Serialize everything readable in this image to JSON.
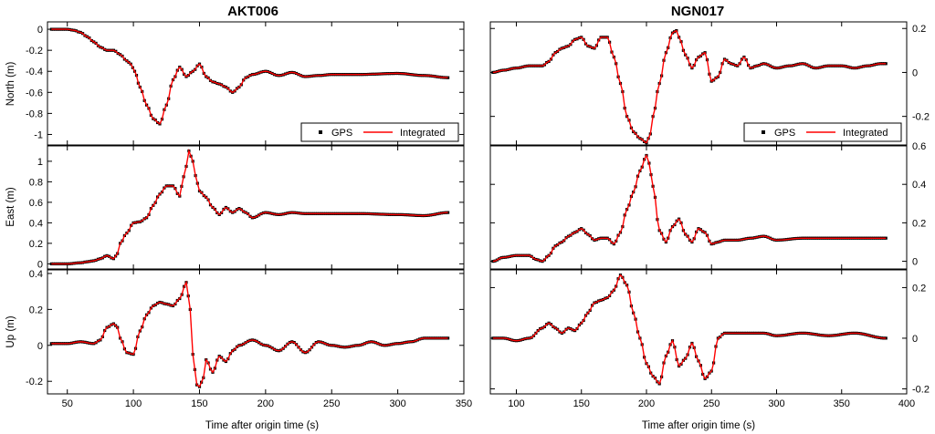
{
  "colors": {
    "gps": "#000000",
    "integrated": "#ff0000",
    "frame": "#000000"
  },
  "columns": [
    {
      "title": "AKT006",
      "xlim": [
        35,
        350
      ],
      "xticks": [
        50,
        100,
        150,
        200,
        250,
        300,
        350
      ],
      "xlabel": "Time after origin time (s)",
      "yaxis_side": "left"
    },
    {
      "title": "NGN017",
      "xlim": [
        80,
        400
      ],
      "xticks": [
        100,
        150,
        200,
        250,
        300,
        350,
        400
      ],
      "xlabel": "Time after origin time (s)",
      "yaxis_side": "right"
    }
  ],
  "legend": {
    "gps_label": "GPS",
    "integrated_label": "Integrated",
    "placement": "bottom-right"
  },
  "chart_data": [
    {
      "type": "line",
      "station": "AKT006",
      "component": "North",
      "ylabel": "North (m)",
      "ylim": [
        -1.1,
        0.07
      ],
      "yticks": [
        0.0,
        -0.2,
        -0.4,
        -0.6,
        -0.8,
        -1.0
      ],
      "series": [
        {
          "name": "GPS",
          "marker": "square"
        },
        {
          "name": "Integrated",
          "line": "solid"
        }
      ],
      "x": [
        38,
        50,
        55,
        60,
        65,
        70,
        75,
        80,
        85,
        90,
        95,
        98,
        101,
        105,
        110,
        115,
        120,
        125,
        130,
        135,
        140,
        145,
        150,
        155,
        160,
        165,
        170,
        175,
        180,
        185,
        190,
        200,
        210,
        220,
        230,
        240,
        250,
        270,
        300,
        320,
        338
      ],
      "y": [
        0.0,
        0.0,
        -0.01,
        -0.03,
        -0.07,
        -0.12,
        -0.17,
        -0.2,
        -0.2,
        -0.24,
        -0.3,
        -0.33,
        -0.4,
        -0.55,
        -0.72,
        -0.85,
        -0.9,
        -0.72,
        -0.48,
        -0.36,
        -0.45,
        -0.4,
        -0.33,
        -0.45,
        -0.5,
        -0.52,
        -0.55,
        -0.6,
        -0.55,
        -0.46,
        -0.43,
        -0.4,
        -0.44,
        -0.41,
        -0.45,
        -0.44,
        -0.43,
        -0.43,
        -0.42,
        -0.44,
        -0.46
      ]
    },
    {
      "type": "line",
      "station": "NGN017",
      "component": "North",
      "ylabel": "",
      "ylim": [
        -0.33,
        0.23
      ],
      "yticks": [
        0.2,
        0.0,
        -0.2
      ],
      "series": [
        {
          "name": "GPS",
          "marker": "square"
        },
        {
          "name": "Integrated",
          "line": "solid"
        }
      ],
      "x": [
        82,
        90,
        100,
        110,
        120,
        125,
        130,
        135,
        140,
        145,
        150,
        155,
        160,
        165,
        170,
        175,
        180,
        185,
        190,
        195,
        200,
        203,
        205,
        210,
        215,
        220,
        223,
        225,
        230,
        235,
        240,
        245,
        250,
        255,
        260,
        265,
        270,
        275,
        280,
        285,
        290,
        300,
        310,
        320,
        330,
        340,
        350,
        360,
        370,
        380,
        384
      ],
      "y": [
        0.0,
        0.01,
        0.02,
        0.03,
        0.03,
        0.05,
        0.09,
        0.11,
        0.12,
        0.15,
        0.16,
        0.12,
        0.11,
        0.16,
        0.16,
        0.07,
        -0.05,
        -0.2,
        -0.27,
        -0.3,
        -0.32,
        -0.28,
        -0.2,
        -0.05,
        0.09,
        0.18,
        0.19,
        0.16,
        0.08,
        0.02,
        0.07,
        0.09,
        -0.04,
        -0.02,
        0.06,
        0.04,
        0.03,
        0.07,
        0.02,
        0.03,
        0.04,
        0.02,
        0.03,
        0.04,
        0.02,
        0.03,
        0.03,
        0.02,
        0.03,
        0.04,
        0.04
      ]
    },
    {
      "type": "line",
      "station": "AKT006",
      "component": "East",
      "ylabel": "East (m)",
      "ylim": [
        -0.05,
        1.15
      ],
      "yticks": [
        0.0,
        0.2,
        0.4,
        0.6,
        0.8,
        1.0
      ],
      "series": [
        {
          "name": "GPS",
          "marker": "square"
        },
        {
          "name": "Integrated",
          "line": "solid"
        }
      ],
      "x": [
        38,
        50,
        60,
        65,
        70,
        75,
        80,
        85,
        88,
        90,
        95,
        100,
        105,
        110,
        115,
        120,
        125,
        130,
        135,
        138,
        140,
        142,
        145,
        147,
        150,
        155,
        160,
        165,
        170,
        175,
        180,
        185,
        190,
        200,
        210,
        220,
        230,
        250,
        270,
        300,
        320,
        338
      ],
      "y": [
        0.0,
        0.0,
        0.01,
        0.02,
        0.03,
        0.05,
        0.08,
        0.05,
        0.1,
        0.2,
        0.3,
        0.4,
        0.41,
        0.45,
        0.57,
        0.68,
        0.76,
        0.76,
        0.66,
        0.85,
        0.95,
        1.1,
        1.0,
        0.86,
        0.71,
        0.65,
        0.55,
        0.48,
        0.55,
        0.5,
        0.54,
        0.5,
        0.45,
        0.5,
        0.48,
        0.5,
        0.49,
        0.49,
        0.49,
        0.48,
        0.47,
        0.5
      ]
    },
    {
      "type": "line",
      "station": "NGN017",
      "component": "East",
      "ylabel": "",
      "ylim": [
        -0.04,
        0.6
      ],
      "yticks": [
        0.0,
        0.2,
        0.4,
        0.6
      ],
      "series": [
        {
          "name": "GPS",
          "marker": "square"
        },
        {
          "name": "Integrated",
          "line": "solid"
        }
      ],
      "x": [
        82,
        90,
        100,
        110,
        115,
        120,
        125,
        130,
        135,
        140,
        145,
        150,
        155,
        160,
        165,
        170,
        175,
        180,
        185,
        190,
        195,
        200,
        202,
        205,
        210,
        215,
        220,
        225,
        230,
        235,
        240,
        245,
        250,
        255,
        260,
        270,
        280,
        290,
        300,
        320,
        340,
        360,
        384
      ],
      "y": [
        0.0,
        0.02,
        0.03,
        0.03,
        0.01,
        0.0,
        0.03,
        0.08,
        0.1,
        0.13,
        0.15,
        0.17,
        0.14,
        0.11,
        0.12,
        0.12,
        0.09,
        0.15,
        0.27,
        0.36,
        0.47,
        0.55,
        0.51,
        0.39,
        0.16,
        0.1,
        0.18,
        0.22,
        0.14,
        0.1,
        0.17,
        0.15,
        0.09,
        0.1,
        0.11,
        0.11,
        0.12,
        0.13,
        0.11,
        0.12,
        0.12,
        0.12,
        0.12
      ]
    },
    {
      "type": "line",
      "station": "AKT006",
      "component": "Up",
      "ylabel": "Up (m)",
      "ylim": [
        -0.27,
        0.42
      ],
      "yticks": [
        0.4,
        0.2,
        0.0,
        -0.2
      ],
      "series": [
        {
          "name": "GPS",
          "marker": "square"
        },
        {
          "name": "Integrated",
          "line": "solid"
        }
      ],
      "x": [
        38,
        50,
        60,
        70,
        75,
        80,
        85,
        88,
        90,
        95,
        100,
        105,
        110,
        115,
        120,
        125,
        130,
        135,
        140,
        143,
        145,
        148,
        150,
        153,
        155,
        160,
        165,
        170,
        175,
        180,
        190,
        200,
        210,
        220,
        230,
        240,
        250,
        260,
        270,
        280,
        290,
        300,
        310,
        320,
        330,
        338
      ],
      "y": [
        0.01,
        0.01,
        0.02,
        0.01,
        0.03,
        0.1,
        0.12,
        0.1,
        0.04,
        -0.04,
        -0.05,
        0.08,
        0.17,
        0.22,
        0.24,
        0.23,
        0.22,
        0.26,
        0.35,
        0.2,
        -0.05,
        -0.22,
        -0.23,
        -0.18,
        -0.08,
        -0.15,
        -0.06,
        -0.09,
        -0.03,
        0.0,
        0.03,
        0.0,
        -0.03,
        0.02,
        -0.04,
        0.02,
        0.0,
        -0.01,
        0.0,
        0.02,
        0.0,
        0.01,
        0.02,
        0.04,
        0.04,
        0.04
      ]
    },
    {
      "type": "line",
      "station": "NGN017",
      "component": "Up",
      "ylabel": "",
      "ylim": [
        -0.22,
        0.27
      ],
      "yticks": [
        0.2,
        0.0,
        -0.2
      ],
      "series": [
        {
          "name": "GPS",
          "marker": "square"
        },
        {
          "name": "Integrated",
          "line": "solid"
        }
      ],
      "x": [
        82,
        90,
        100,
        110,
        120,
        125,
        130,
        135,
        140,
        145,
        150,
        155,
        160,
        165,
        170,
        175,
        180,
        185,
        190,
        195,
        200,
        205,
        210,
        215,
        220,
        225,
        230,
        235,
        240,
        245,
        250,
        255,
        260,
        270,
        280,
        290,
        300,
        320,
        340,
        360,
        384
      ],
      "y": [
        0.0,
        0.0,
        -0.01,
        0.0,
        0.04,
        0.06,
        0.04,
        0.02,
        0.04,
        0.03,
        0.06,
        0.1,
        0.14,
        0.15,
        0.16,
        0.19,
        0.25,
        0.21,
        0.1,
        0.0,
        -0.1,
        -0.15,
        -0.18,
        -0.07,
        -0.01,
        -0.11,
        -0.08,
        -0.02,
        -0.09,
        -0.16,
        -0.13,
        0.0,
        0.02,
        0.02,
        0.02,
        0.02,
        0.01,
        0.02,
        0.01,
        0.02,
        0.0
      ]
    }
  ]
}
